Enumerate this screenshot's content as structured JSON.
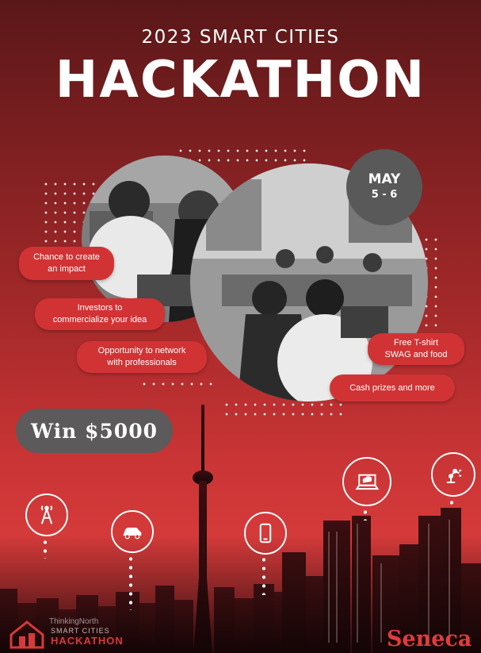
{
  "header": {
    "year_title": "2023 SMART CITIES",
    "main_title": "HACKATHON"
  },
  "date": {
    "month": "MAY",
    "days": "5 - 6"
  },
  "benefits": [
    "Chance to create\nan impact",
    "Investors to\ncommercialize your idea",
    "Opportunity to network\nwith professionals",
    "Free T-shirt\nSWAG and food",
    "Cash prizes and more"
  ],
  "prize": "Win $5000",
  "footer": {
    "logo_line1": "ThinkingNorth",
    "logo_line2": "SMART CITIES",
    "logo_line3": "HACKATHON",
    "sponsor": "Seneca"
  },
  "icons": [
    "antenna-icon",
    "car-icon",
    "smartphone-icon",
    "laptop-cloud-icon",
    "robot-arm-icon"
  ],
  "colors": {
    "accent_red": "#d13334",
    "badge_gray": "#595959"
  }
}
